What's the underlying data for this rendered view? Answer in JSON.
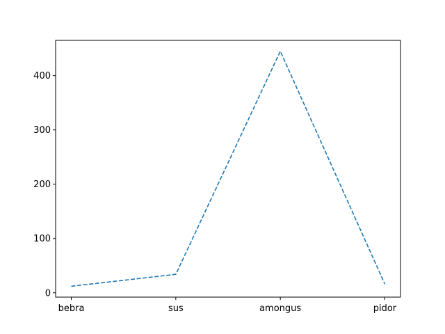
{
  "chart_data": {
    "type": "line",
    "title": "",
    "xlabel": "",
    "ylabel": "",
    "categories": [
      "bebra",
      "sus",
      "amongus",
      "pidor"
    ],
    "series": [
      {
        "values": [
          12,
          34,
          445,
          16
        ],
        "color": "#1f77b4",
        "line_style": "dashed"
      }
    ],
    "ylim": [
      -8,
      465
    ],
    "yticks": [
      0,
      100,
      200,
      300,
      400
    ],
    "ytick_labels": [
      "0",
      "100",
      "200",
      "300",
      "400"
    ],
    "grid": false,
    "legend": "none"
  }
}
